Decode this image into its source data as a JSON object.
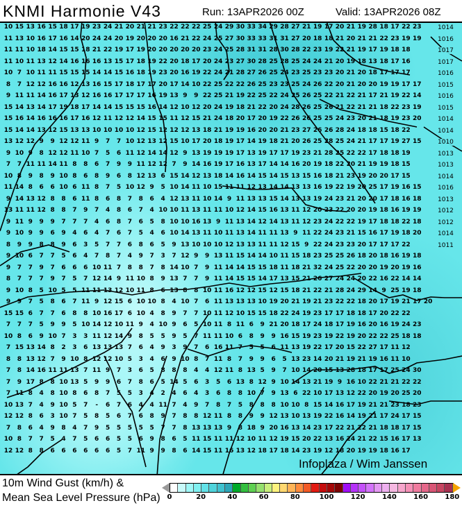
{
  "header": {
    "title": "KNMI Harmonie V43",
    "run": "Run: 13APR2026 00Z",
    "valid": "Valid: 13APR2026 08Z"
  },
  "legend": {
    "line1": "10m Wind Gust (km/h) &",
    "line2": "Mean Sea Level Pressure (hPa)",
    "ticks": [
      "0",
      "20",
      "40",
      "60",
      "80",
      "100",
      "120",
      "140",
      "160",
      "180"
    ],
    "range": [
      0,
      180
    ],
    "step": 5,
    "colors": [
      "#ffffff",
      "#c8fafa",
      "#9ef7f7",
      "#80f0f0",
      "#62e2e8",
      "#4fd3db",
      "#40c2cf",
      "#2da6b8",
      "#00aa2a",
      "#33bf3f",
      "#5fd052",
      "#95e06e",
      "#c9ef7c",
      "#fdf27e",
      "#ffd870",
      "#ffb457",
      "#ff8b3c",
      "#f25a26",
      "#e21b12",
      "#c40d0d",
      "#a50707",
      "#7e0202",
      "#a010f5",
      "#b531f8",
      "#c451fa",
      "#d473fb",
      "#e598f3",
      "#eeb0ef",
      "#f5b8e1",
      "#f7a6cc",
      "#f590b6",
      "#ef7c9f",
      "#e5678a",
      "#d85676",
      "#c84562",
      "#a83050"
    ],
    "under_color": "#999999",
    "over_color": "#f5a300"
  },
  "map": {
    "coastline_color": "#000000",
    "gust_rows": [
      "10 15 13 16 15 18 17 19 23 24 21 20 21 21 23 22 22 22 25 24 29 30 33 34 29 28 27 21 19 17 20 21 19 28 18 17 22 23",
      "11 13 10 16 17 16 14 20 24 24 20 19 20 20 20 16 21 22 24 25 27 30 33 33 31 31 27 20 18 18 21 20 21 21 22 23 19 19",
      "11 11 10 18 14 15 15 18 21 22 19 17 19 20 20 20 20 20 23 24 25 28 31 31 28 30 28 22 23 19 22 21 19 17 19 18 18",
      "11 10 11 13 12 14 16 16 16 13 15 17 18 19 22 20 18 17 20 24 23 27 30 28 25 28 25 24 24 21 20 19 18 13 18 17 16",
      "10 7 10 11 11 15 15 15 14 14 15 16 18 19 23 20 16 19 22 24 21 28 27 26 25 24 23 25 23 23 20 21 20 18 17 17 17",
      "8 7 12 12 16 16 12 13 16 15 17 18 17 17 20 17 14 10 22 25 22 22 26 25 23 23 25 24 26 22 20 21 20 20 19 19 17 17",
      "9 11 11 14 16 17 13 12 16 16 17 17 17 16 19 13 9 9 22 25 21 19 22 25 22 24 25 26 25 22 21 22 21 17 21 19 22 14",
      "15 14 13 14 17 19 18 17 14 14 15 15 15 16 14 12 10 12 20 24 19 18 21 22 20 24 28 26 25 26 21 22 21 21 18 22 23 19",
      "15 16 14 16 16 16 17 16 12 11 12 12 14 15 15 11 12 15 21 24 18 20 17 20 19 22 26 26 25 25 24 23 20 21 18 19 23 20",
      "15 14 14 13 12 15 13 13 10 10 10 10 12 15 12 12 12 13 18 21 19 19 16 20 20 21 23 27 26 26 28 24 18 18 15 18 22",
      "13 12 12 9 9 12 12 11 9 7 7 10 12 13 12 15 10 17 20 18 19 17 14 19 18 21 20 26 25 28 25 24 21 17 17 19 27 15",
      "9 10 9 8 12 12 11 10 7 5 6 11 12 14 14 12 9 13 19 19 19 17 13 19 17 17 19 23 21 28 25 22 22 17 18 18 19",
      "7 7 11 11 14 11 8 8 6 7 9 9 11 12 12 7 9 14 16 19 17 16 13 17 14 14 16 20 19 18 22 20 21 19 19 18 15",
      "10 8 9 8 9 10 8 6 8 9 6 8 12 13 6 15 14 12 13 18 14 16 14 15 14 15 13 15 16 18 21 23 19 20 20 17 15",
      "11 14 8 6 6 10 6 11 8 7 5 10 12 9 5 10 14 11 10 15 11 11 12 13 14 14 13 13 16 19 22 19 20 25 17 19 16 15",
      "9 14 13 12 8 8 6 11 8 6 8 7 8 6 4 12 13 11 10 14 9 11 13 13 15 14 13 13 19 24 23 21 20 20 17 18 16 18",
      "13 11 11 12 8 8 7 9 7 4 8 6 7 4 10 10 11 13 11 11 10 12 14 15 16 13 11 12 20 23 22 20 20 19 18 16 19 19",
      "9 11 9 9 9 7 7 7 4 6 8 7 6 5 8 10 10 16 13 9 11 13 14 12 14 13 11 12 23 24 22 22 19 17 18 18 22 18",
      "9 10 9 9 6 9 4 6 4 7 6 7 5 4 6 10 14 13 11 10 11 13 14 11 11 13 9 11 22 24 23 21 15 16 17 19 18 20",
      "8 9 9 8 8 9 6 3 5 7 7 6 8 6 5 9 13 10 10 10 12 13 13 11 11 12 15 9 22 24 23 23 20 17 17 17 22",
      "9 10 6 7 7 5 6 4 7 8 7 4 9 7 3 7 12 9 9 13 11 15 14 14 10 11 15 18 23 25 25 26 18 20 18 16 19 18",
      "9 7 7 9 7 6 6 6 10 11 7 8 8 7 8 14 10 7 9 11 14 14 15 15 18 11 18 21 32 24 25 22 20 20 19 20 19 16",
      "8 7 7 7 9 7 5 7 12 14 9 11 10 8 9 13 7 7 9 11 14 15 15 14 17 13 15 21 26 27 24 24 20 22 16 22 14 14",
      "9 10 8 5 10 5 5 11 11 13 12 10 11 8 6 13 8 8 10 11 16 12 12 15 12 15 18 21 22 21 28 24 29 14 9 25 19 18",
      "9 9 7 5 8 6 7 11 9 12 15 6 10 10 8 4 10 7 6 11 13 13 13 10 19 20 21 19 21 23 22 22 18 20 17 19 21 17 20",
      "15 15 6 7 7 6 8 8 10 16 17 6 10 4 8 9 7 7 10 11 12 10 15 15 18 22 24 19 23 17 17 18 18 17 20 22 22",
      "7 7 7 5 9 9 5 10 14 12 10 11 9 4 10 9 6 5 10 11 8 11 6 9 21 20 18 17 24 18 17 19 16 20 16 19 24 23",
      "10 8 6 9 10 7 3 3 11 12 14 9 8 5 5 9 5 7 11 11 10 6 8 9 9 16 15 19 23 19 22 19 20 22 22 25 18 18",
      "7 15 13 14 8 2 3 6 13 13 13 7 6 4 9 3 9 7 6 16 11 7 5 5 6 11 13 19 22 17 20 15 22 27 17 11 12",
      "8 8 13 12 7 9 10 8 12 12 10 5 3 4 6 9 10 8 7 11 8 7 9 9 6 5 13 23 14 20 21 19 21 19 16 11 10",
      "7 8 14 16 11 11 13 7 11 9 7 3 6 5 8 8 8 4 4 12 11 8 13 5 9 7 10 14 20 15 13 28 18 17 17 25 24 30",
      "7 9 17 8 8 10 13 5 9 9 6 7 8 6 5 14 5 6 3 5 6 13 8 12 9 10 14 13 21 19 9 16 10 22 21 21 22 22",
      "7 11 8 4 8 10 8 6 8 7 5 5 3 4 2 4 6 4 3 6 8 8 10 7 9 13 6 22 10 17 13 12 22 20 19 20 25 20",
      "10 13 7 4 9 10 5 7 - 6 7 6 4 4 11 7 4 9 7 8 7 5 8 8 8 10 10 8 15 14 16 17 19 21 21 23 18 23",
      "12 12 8 6 3 10 7 5 8 5 6 7 6 8 9 7 8 8 12 11 8 8 9 9 12 13 10 13 19 22 16 14 19 21 17 24 17 15",
      "7 8 6 4 9 8 4 7 9 5 5 5 5 5 7 7 8 13 13 13 9 8 18 9 20 16 13 14 23 17 22 21 22 21 18 18 17 15",
      "10 8 7 7 5 4 7 5 6 6 5 5 6 9 8 6 5 11 15 11 11 12 10 11 12 19 15 20 22 13 16 24 21 22 15 16 17 13",
      "12 12 8 8 6 6 6 6 6 6 5 7 11 9 9 8 6 14 15 11 16 13 12 18 17 18 14 23 19 12 18 20 19 19 18 16 17"
    ],
    "isobar_labels": [
      "1014",
      "1016",
      "1017",
      "1017",
      "1016",
      "1015",
      "1016",
      "1015",
      "1014",
      "1014",
      "1010",
      "1013",
      "1013",
      "1014",
      "1016",
      "1013",
      "1012",
      "1012",
      "1014",
      "1011"
    ],
    "credit": "Infoplaza / Wim Janssen"
  }
}
